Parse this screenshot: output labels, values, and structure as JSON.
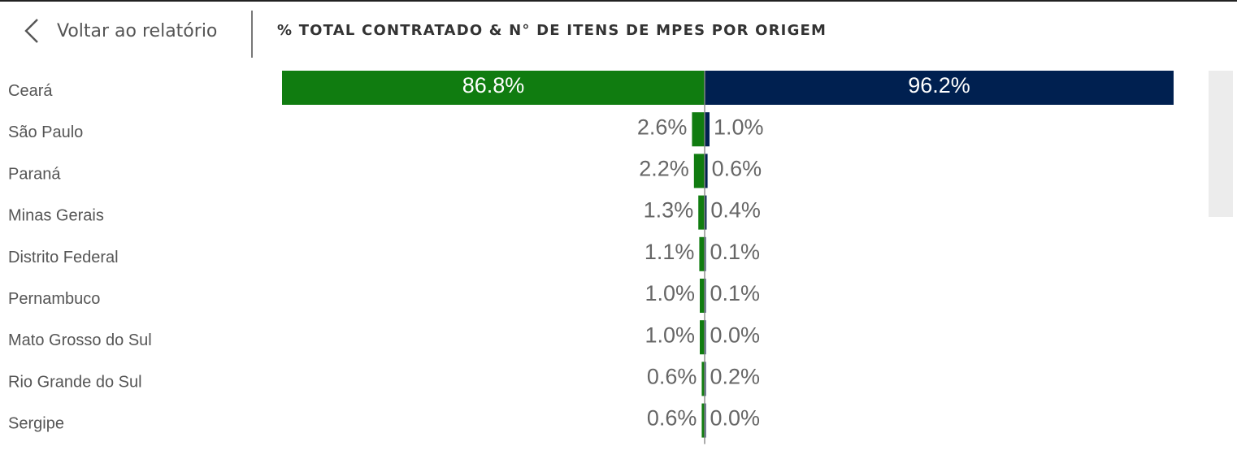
{
  "header": {
    "back_label": "Voltar ao relatório",
    "title": "% TOTAL CONTRATADO & N° DE ITENS DE MPES POR ORIGEM"
  },
  "icons": {
    "back": "chevron-left-icon"
  },
  "chart_data": {
    "type": "bar",
    "orientation": "horizontal",
    "layout": "diverging",
    "title": "% TOTAL CONTRATADO & N° DE ITENS DE MPES POR ORIGEM",
    "categories": [
      "Ceará",
      "São Paulo",
      "Paraná",
      "Minas Gerais",
      "Distrito Federal",
      "Pernambuco",
      "Mato Grosso do Sul",
      "Rio Grande do Sul",
      "Sergipe"
    ],
    "series": [
      {
        "side": "left",
        "color": "#107c10",
        "values": [
          86.8,
          2.6,
          2.2,
          1.3,
          1.1,
          1.0,
          1.0,
          0.6,
          0.6
        ],
        "labels": [
          "86.8%",
          "2.6%",
          "2.2%",
          "1.3%",
          "1.1%",
          "1.0%",
          "1.0%",
          "0.6%",
          "0.6%"
        ]
      },
      {
        "side": "right",
        "color": "#002050",
        "values": [
          96.2,
          1.0,
          0.6,
          0.4,
          0.1,
          0.1,
          0.0,
          0.2,
          0.0
        ],
        "labels": [
          "96.2%",
          "1.0%",
          "0.6%",
          "0.4%",
          "0.1%",
          "0.1%",
          "0.0%",
          "0.2%",
          "0.0%"
        ]
      }
    ],
    "axis_max": 100,
    "grid": false,
    "legend": "none"
  }
}
